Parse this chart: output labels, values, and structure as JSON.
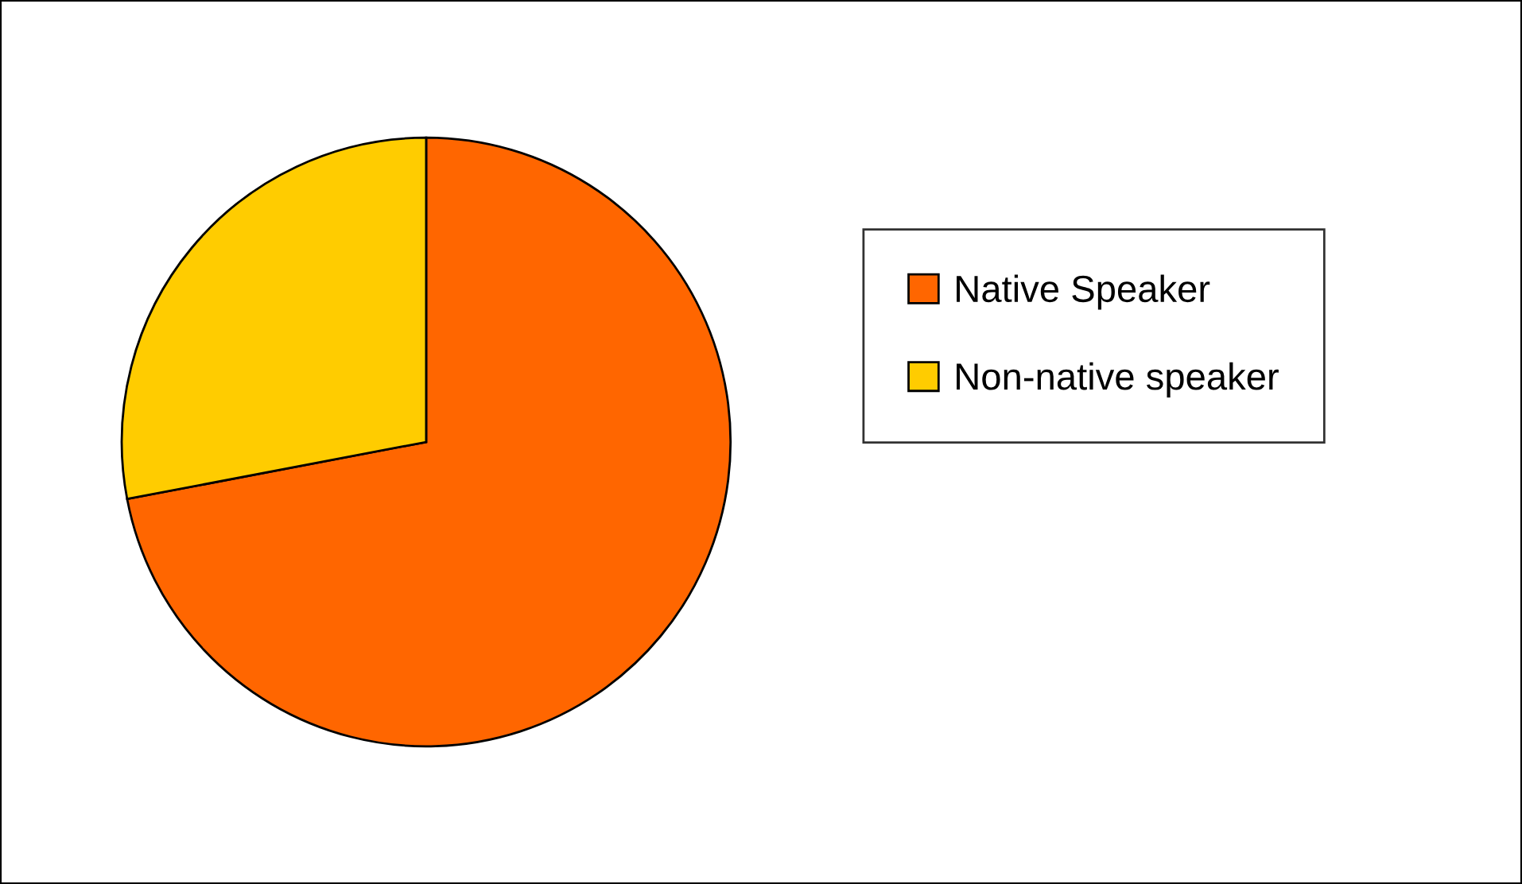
{
  "chart_data": {
    "type": "pie",
    "categories": [
      "Native Speaker",
      "Non-native speaker"
    ],
    "values": [
      72,
      28
    ],
    "colors": [
      "#ff6600",
      "#ffcc00"
    ],
    "legend": "right"
  }
}
